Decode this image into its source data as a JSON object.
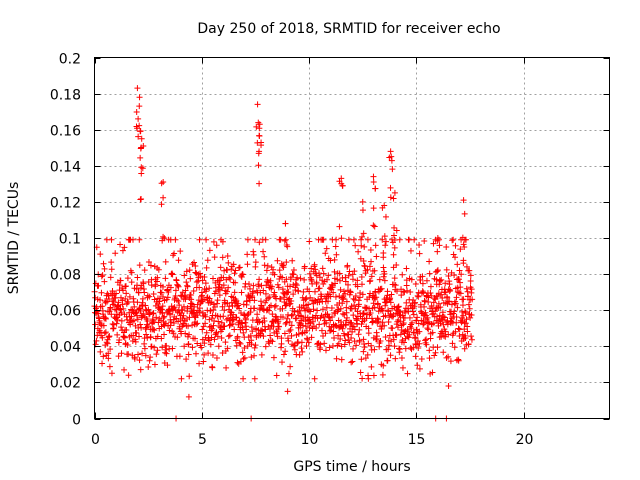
{
  "chart_data": {
    "type": "scatter",
    "title": "Day 250 of 2018, SRMTID for receiver echo",
    "xlabel": "GPS time / hours",
    "ylabel": "SRMTID / TECUs",
    "xlim": [
      0,
      24
    ],
    "ylim": [
      0,
      0.2
    ],
    "xticks": [
      0,
      5,
      10,
      15,
      20
    ],
    "yticks": [
      0,
      0.02,
      0.04,
      0.06,
      0.08,
      0.1,
      0.12,
      0.14,
      0.16,
      0.18,
      0.2
    ],
    "grid": true,
    "marker": "+",
    "color": "#ff0000",
    "series": [
      {
        "name": "SRMTID",
        "x_range": [
          0,
          17.6
        ],
        "n_points": 1800,
        "median": 0.058,
        "typical_band": [
          0.03,
          0.09
        ],
        "peaks": [
          {
            "x": 2.0,
            "y": 0.183
          },
          {
            "x": 2.1,
            "y": 0.178
          },
          {
            "x": 2.2,
            "y": 0.155
          },
          {
            "x": 3.2,
            "y": 0.131
          },
          {
            "x": 7.6,
            "y": 0.174
          },
          {
            "x": 7.7,
            "y": 0.163
          },
          {
            "x": 8.9,
            "y": 0.108
          },
          {
            "x": 11.5,
            "y": 0.133
          },
          {
            "x": 12.5,
            "y": 0.12
          },
          {
            "x": 13.0,
            "y": 0.134
          },
          {
            "x": 13.5,
            "y": 0.118
          },
          {
            "x": 13.8,
            "y": 0.148
          },
          {
            "x": 14.0,
            "y": 0.125
          },
          {
            "x": 16.0,
            "y": 0.1
          },
          {
            "x": 17.2,
            "y": 0.121
          }
        ],
        "lows": [
          {
            "x": 4.4,
            "y": 0.012
          },
          {
            "x": 9.0,
            "y": 0.015
          },
          {
            "x": 16.5,
            "y": 0.018
          }
        ],
        "zero_points": [
          {
            "x": 3.8,
            "y": 0
          },
          {
            "x": 7.3,
            "y": 0
          },
          {
            "x": 15.9,
            "y": 0
          },
          {
            "x": 16.4,
            "y": 0
          }
        ]
      }
    ]
  }
}
